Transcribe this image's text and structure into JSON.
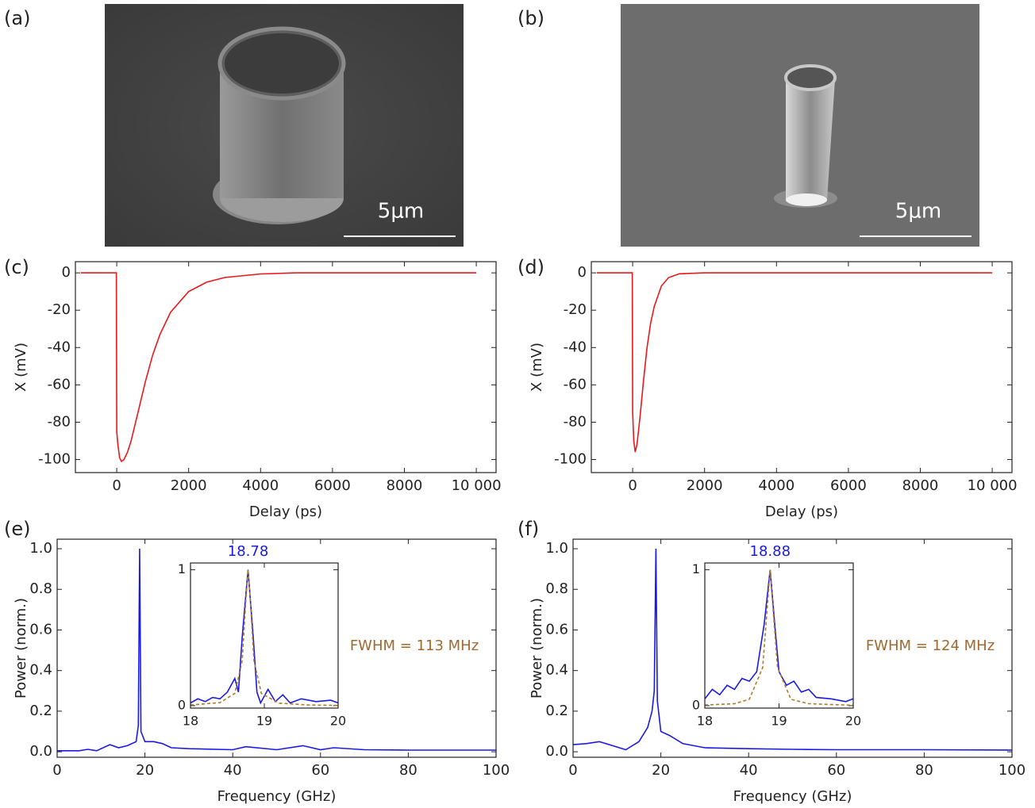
{
  "images": [
    {
      "panel": "(a)",
      "scale_bar": "5μm"
    },
    {
      "panel": "(b)",
      "scale_bar": "5μm"
    }
  ],
  "chart_data": [
    {
      "type": "line",
      "panel": "(c)",
      "x_label": "Delay (ps)",
      "y_label": "X (mV)",
      "xlim": [
        -1150,
        10550
      ],
      "ylim": [
        -107,
        6
      ],
      "xticks": [
        0,
        2000,
        4000,
        6000,
        8000,
        {
          "value": 10000,
          "label": "10 000"
        }
      ],
      "yticks": [
        0,
        -20,
        -40,
        -60,
        -80,
        -100
      ],
      "series": [
        {
          "color": "#e8191c",
          "x": [
            -1000,
            -10,
            0,
            30,
            80,
            130,
            200,
            300,
            400,
            500,
            600,
            800,
            1000,
            1200,
            1500,
            2000,
            2500,
            3000,
            4000,
            5000,
            10000
          ],
          "values": [
            0,
            0,
            -85,
            -92,
            -99,
            -101,
            -100,
            -96,
            -90,
            -82,
            -74,
            -58,
            -44,
            -33,
            -21,
            -10,
            -5,
            -2.5,
            -0.6,
            0,
            0
          ]
        }
      ]
    },
    {
      "type": "line",
      "panel": "(d)",
      "x_label": "Delay (ps)",
      "y_label": "X (mV)",
      "xlim": [
        -1150,
        10550
      ],
      "ylim": [
        -107,
        6
      ],
      "xticks": [
        0,
        2000,
        4000,
        6000,
        8000,
        {
          "value": 10000,
          "label": "10 000"
        }
      ],
      "yticks": [
        0,
        -20,
        -40,
        -60,
        -80,
        -100
      ],
      "series": [
        {
          "color": "#e8191c",
          "x": [
            -1000,
            -10,
            0,
            30,
            70,
            120,
            200,
            300,
            400,
            500,
            600,
            800,
            1000,
            1300,
            2000,
            10000
          ],
          "values": [
            0,
            0,
            -75,
            -90,
            -96,
            -92,
            -78,
            -58,
            -40,
            -27,
            -18,
            -7,
            -2.5,
            -0.5,
            0,
            0
          ]
        }
      ]
    },
    {
      "type": "line",
      "panel": "(e)",
      "x_label": "Frequency (GHz)",
      "y_label": "Power (norm.)",
      "annotation": "FWHM = 113 MHz",
      "annotation_color": "#a0692e",
      "xlim": [
        0,
        100
      ],
      "ylim": [
        -0.027,
        1.047
      ],
      "xticks": [
        0,
        20,
        40,
        60,
        80,
        100
      ],
      "yticks": [
        {
          "value": 0,
          "label": "0.0"
        },
        0.2,
        0.4,
        0.6,
        0.8,
        {
          "value": 1,
          "label": "1.0"
        }
      ],
      "series": [
        {
          "color": "#1a1ae6",
          "x": [
            0,
            5,
            7,
            9,
            12,
            14,
            16,
            18,
            18.5,
            18.78,
            19.1,
            20,
            22,
            24,
            26,
            30,
            40,
            43,
            50,
            56,
            60,
            63,
            70,
            80,
            90,
            100
          ],
          "values": [
            0.005,
            0.005,
            0.012,
            0.005,
            0.035,
            0.02,
            0.03,
            0.05,
            0.13,
            1.0,
            0.1,
            0.05,
            0.05,
            0.04,
            0.02,
            0.015,
            0.01,
            0.025,
            0.01,
            0.03,
            0.01,
            0.02,
            0.01,
            0.008,
            0.008,
            0.008
          ]
        }
      ]
    },
    {
      "type": "line",
      "panel": "(f)",
      "x_label": "Frequency (GHz)",
      "y_label": "Power (norm.)",
      "annotation": "FWHM = 124 MHz",
      "annotation_color": "#a0692e",
      "xlim": [
        0,
        100
      ],
      "ylim": [
        -0.027,
        1.047
      ],
      "xticks": [
        0,
        20,
        40,
        60,
        80,
        100
      ],
      "yticks": [
        {
          "value": 0,
          "label": "0.0"
        },
        0.2,
        0.4,
        0.6,
        0.8,
        {
          "value": 1,
          "label": "1.0"
        }
      ],
      "series": [
        {
          "color": "#1a1ae6",
          "x": [
            0,
            3,
            6,
            9,
            12,
            15,
            17,
            18,
            18.5,
            18.88,
            19.2,
            20,
            22,
            25,
            30,
            40,
            50,
            60,
            80,
            100
          ],
          "values": [
            0.035,
            0.04,
            0.05,
            0.03,
            0.01,
            0.05,
            0.12,
            0.2,
            0.3,
            1.0,
            0.25,
            0.1,
            0.08,
            0.04,
            0.02,
            0.015,
            0.012,
            0.01,
            0.01,
            0.008
          ]
        }
      ]
    },
    {
      "type": "line",
      "annotation": "18.78",
      "annotation_color": "#1a1ae6",
      "xlim": [
        18,
        20
      ],
      "ylim": [
        -0.018,
        1.05
      ],
      "xticks": [
        18,
        19,
        20
      ],
      "yticks": [
        0,
        1
      ],
      "series": [
        {
          "color": "#1a1ae6",
          "x": [
            18,
            18.1,
            18.2,
            18.3,
            18.4,
            18.5,
            18.6,
            18.65,
            18.7,
            18.78,
            18.85,
            18.9,
            18.95,
            19.05,
            19.15,
            19.25,
            19.35,
            19.5,
            19.7,
            19.9,
            20
          ],
          "values": [
            0.02,
            0.05,
            0.03,
            0.06,
            0.05,
            0.1,
            0.2,
            0.1,
            0.5,
            1.0,
            0.5,
            0.1,
            0.02,
            0.12,
            0.03,
            0.08,
            0.02,
            0.05,
            0.03,
            0.04,
            0.02
          ]
        },
        {
          "color": "#b07a2a",
          "line_style": "dashed",
          "x": [
            18,
            18.4,
            18.6,
            18.7,
            18.75,
            18.78,
            18.81,
            18.86,
            18.96,
            19.2,
            19.6,
            20
          ],
          "values": [
            0.005,
            0.022,
            0.09,
            0.33,
            0.78,
            1.0,
            0.78,
            0.33,
            0.09,
            0.018,
            0.005,
            0.002
          ]
        }
      ]
    },
    {
      "type": "line",
      "annotation": "18.88",
      "annotation_color": "#1a1ae6",
      "xlim": [
        18,
        20
      ],
      "ylim": [
        -0.018,
        1.05
      ],
      "xticks": [
        18,
        19,
        20
      ],
      "yticks": [
        0,
        1
      ],
      "series": [
        {
          "color": "#1a1ae6",
          "x": [
            18,
            18.1,
            18.2,
            18.3,
            18.4,
            18.5,
            18.6,
            18.7,
            18.8,
            18.88,
            18.95,
            19.0,
            19.1,
            19.2,
            19.3,
            19.4,
            19.5,
            19.7,
            19.9,
            20
          ],
          "values": [
            0.05,
            0.12,
            0.08,
            0.15,
            0.12,
            0.2,
            0.18,
            0.25,
            0.6,
            1.0,
            0.55,
            0.25,
            0.15,
            0.18,
            0.1,
            0.12,
            0.06,
            0.05,
            0.03,
            0.05
          ]
        },
        {
          "color": "#b07a2a",
          "line_style": "dashed",
          "x": [
            18,
            18.4,
            18.6,
            18.78,
            18.84,
            18.88,
            18.92,
            18.98,
            19.16,
            19.4,
            20
          ],
          "values": [
            0.005,
            0.014,
            0.047,
            0.28,
            0.71,
            1.0,
            0.71,
            0.28,
            0.047,
            0.014,
            0.003
          ]
        }
      ]
    }
  ]
}
